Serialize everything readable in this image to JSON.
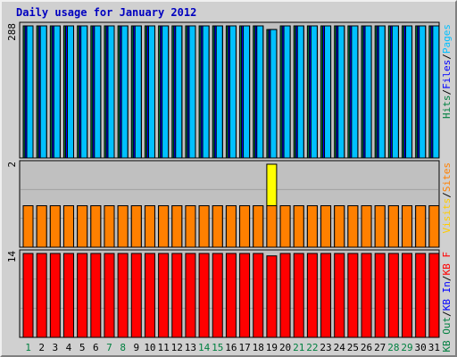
{
  "chart_data": {
    "type": "bar",
    "title": "Daily usage for January 2012",
    "categories": [
      "1",
      "2",
      "3",
      "4",
      "5",
      "6",
      "7",
      "8",
      "9",
      "10",
      "11",
      "12",
      "13",
      "14",
      "15",
      "16",
      "17",
      "18",
      "19",
      "20",
      "21",
      "22",
      "23",
      "24",
      "25",
      "26",
      "27",
      "28",
      "29",
      "30",
      "31"
    ],
    "weekend_days": [
      "1",
      "7",
      "8",
      "14",
      "15",
      "21",
      "22",
      "28",
      "29"
    ],
    "panels": [
      {
        "id": "hits",
        "max_label": "288",
        "ymax": 288,
        "legend": [
          {
            "label": "Hits",
            "color": "#008040"
          },
          {
            "sep": "/",
            "color": "#000000"
          },
          {
            "label": "Files",
            "color": "#0000ff"
          },
          {
            "sep": "/",
            "color": "#000000"
          },
          {
            "label": "Pages",
            "color": "#00c0ff"
          }
        ],
        "series": [
          {
            "name": "Hits",
            "color": "#008040",
            "values": [
              288,
              288,
              288,
              288,
              288,
              288,
              288,
              288,
              288,
              288,
              288,
              288,
              288,
              288,
              288,
              288,
              288,
              288,
              280,
              288,
              288,
              288,
              288,
              288,
              288,
              288,
              288,
              288,
              288,
              288,
              288
            ]
          },
          {
            "name": "Files",
            "color": "#0000ff",
            "values": [
              288,
              288,
              288,
              288,
              288,
              288,
              288,
              288,
              288,
              288,
              288,
              288,
              288,
              288,
              288,
              288,
              288,
              288,
              280,
              288,
              288,
              288,
              288,
              288,
              288,
              288,
              288,
              288,
              288,
              288,
              288
            ]
          },
          {
            "name": "Pages",
            "color": "#00c0ff",
            "values": [
              288,
              288,
              288,
              288,
              288,
              288,
              288,
              288,
              288,
              288,
              288,
              288,
              288,
              288,
              288,
              288,
              288,
              288,
              280,
              288,
              288,
              288,
              288,
              288,
              288,
              288,
              288,
              288,
              288,
              288,
              288
            ]
          }
        ]
      },
      {
        "id": "visits",
        "max_label": "2",
        "ymax": 2,
        "legend": [
          {
            "label": "Visits",
            "color": "#ffcc00"
          },
          {
            "sep": "/",
            "color": "#000000"
          },
          {
            "label": "Sites",
            "color": "#ff8000"
          }
        ],
        "series": [
          {
            "name": "Visits",
            "color": "#ffff00",
            "values": [
              1,
              1,
              1,
              1,
              1,
              1,
              1,
              1,
              1,
              1,
              1,
              1,
              1,
              1,
              1,
              1,
              1,
              1,
              2,
              1,
              1,
              1,
              1,
              1,
              1,
              1,
              1,
              1,
              1,
              1,
              1
            ]
          },
          {
            "name": "Sites",
            "color": "#ff8000",
            "values": [
              1,
              1,
              1,
              1,
              1,
              1,
              1,
              1,
              1,
              1,
              1,
              1,
              1,
              1,
              1,
              1,
              1,
              1,
              1,
              1,
              1,
              1,
              1,
              1,
              1,
              1,
              1,
              1,
              1,
              1,
              1
            ]
          }
        ]
      },
      {
        "id": "kbytes",
        "max_label": "14",
        "ymax": 14,
        "legend": [
          {
            "label": "KB Out",
            "color": "#008040"
          },
          {
            "sep": "/",
            "color": "#000000"
          },
          {
            "label": "KB In",
            "color": "#0000ff"
          },
          {
            "sep": "/",
            "color": "#000000"
          },
          {
            "label": "KB F",
            "color": "#ff0000"
          }
        ],
        "series": [
          {
            "name": "KB F",
            "color": "#ff0000",
            "values": [
              14,
              14,
              14,
              14,
              14,
              14,
              14,
              14,
              14,
              14,
              14,
              14,
              14,
              14,
              14,
              14,
              14,
              14,
              13.6,
              14,
              14,
              14,
              14,
              14,
              14,
              14,
              14,
              14,
              14,
              14,
              14
            ]
          }
        ]
      }
    ]
  }
}
